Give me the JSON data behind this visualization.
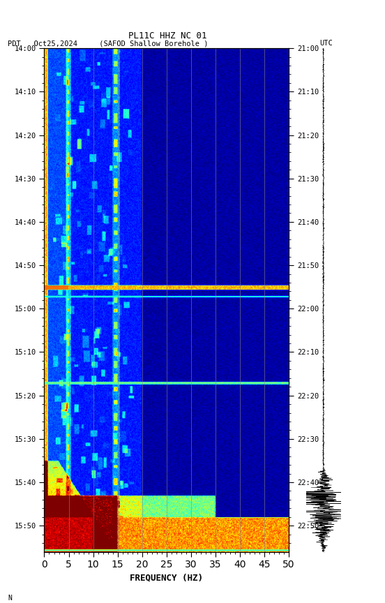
{
  "title_line1": "PL11C HHZ NC 01",
  "title_line2_left": "PDT   Oct25,2024     (SAFOD Shallow Borehole )",
  "title_line2_right": "UTC",
  "freq_min": 0,
  "freq_max": 50,
  "freq_label": "FREQUENCY (HZ)",
  "left_tick_labels": [
    "14:00",
    "14:10",
    "14:20",
    "14:30",
    "14:40",
    "14:50",
    "15:00",
    "15:10",
    "15:20",
    "15:30",
    "15:40",
    "15:50"
  ],
  "right_tick_labels": [
    "21:00",
    "21:10",
    "21:20",
    "21:30",
    "21:40",
    "21:50",
    "22:00",
    "22:10",
    "22:20",
    "22:30",
    "22:40",
    "22:50"
  ],
  "colormap": "jet",
  "fig_width": 5.52,
  "fig_height": 8.64,
  "dpi": 100,
  "vertical_lines_freq": [
    5,
    10,
    15,
    20,
    25,
    30,
    35,
    40,
    45
  ],
  "freq_tick_major": 5,
  "freq_tick_minor": 1,
  "total_minutes": 116,
  "tick_minutes": [
    0,
    10,
    20,
    30,
    40,
    50,
    60,
    70,
    80,
    90,
    100,
    110
  ]
}
